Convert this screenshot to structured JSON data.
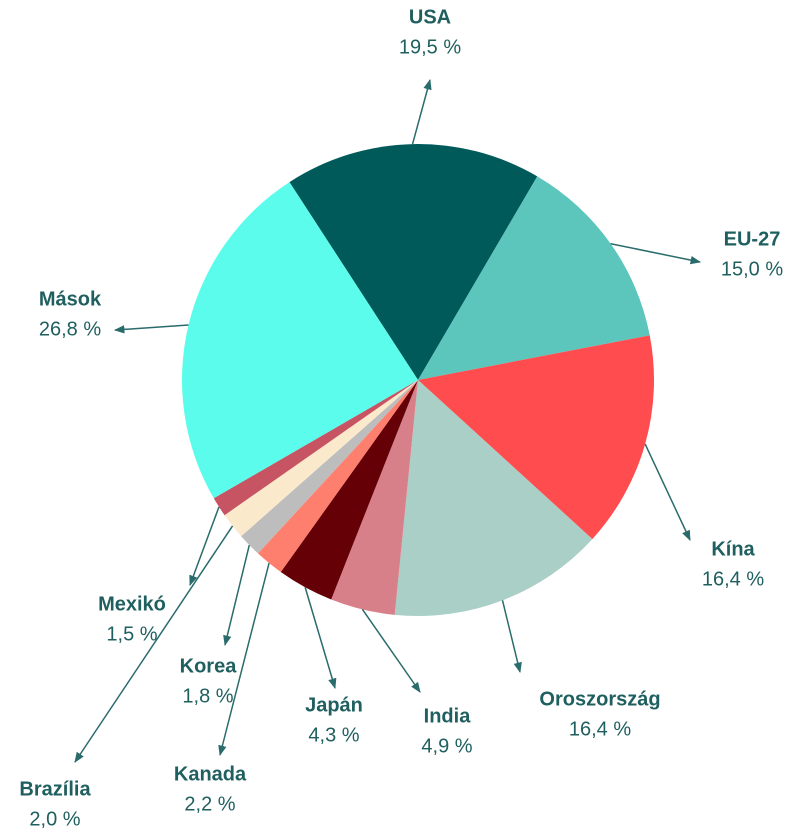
{
  "chart_data": {
    "type": "pie",
    "categories": [
      "USA",
      "EU-27",
      "Kína",
      "Oroszország",
      "India",
      "Japán",
      "Kanada",
      "Korea",
      "Brazília",
      "Mexikó",
      "Mások"
    ],
    "values": [
      19.5,
      15.0,
      16.4,
      16.4,
      4.9,
      4.3,
      2.2,
      1.8,
      2.0,
      1.5,
      26.8
    ],
    "value_labels": [
      "19,5 %",
      "15,0 %",
      "16,4 %",
      "16,4 %",
      "4,9 %",
      "4,3 %",
      "2,2 %",
      "1,8 %",
      "2,0 %",
      "1,5 %",
      "26,8 %"
    ],
    "colors": [
      "#005a5a",
      "#5cc6bc",
      "#ff4d4f",
      "#a9cfc6",
      "#d8808a",
      "#650006",
      "#ff7f6e",
      "#bdbdbd",
      "#fbe9cc",
      "#c75462",
      "#5cfcec"
    ]
  }
}
